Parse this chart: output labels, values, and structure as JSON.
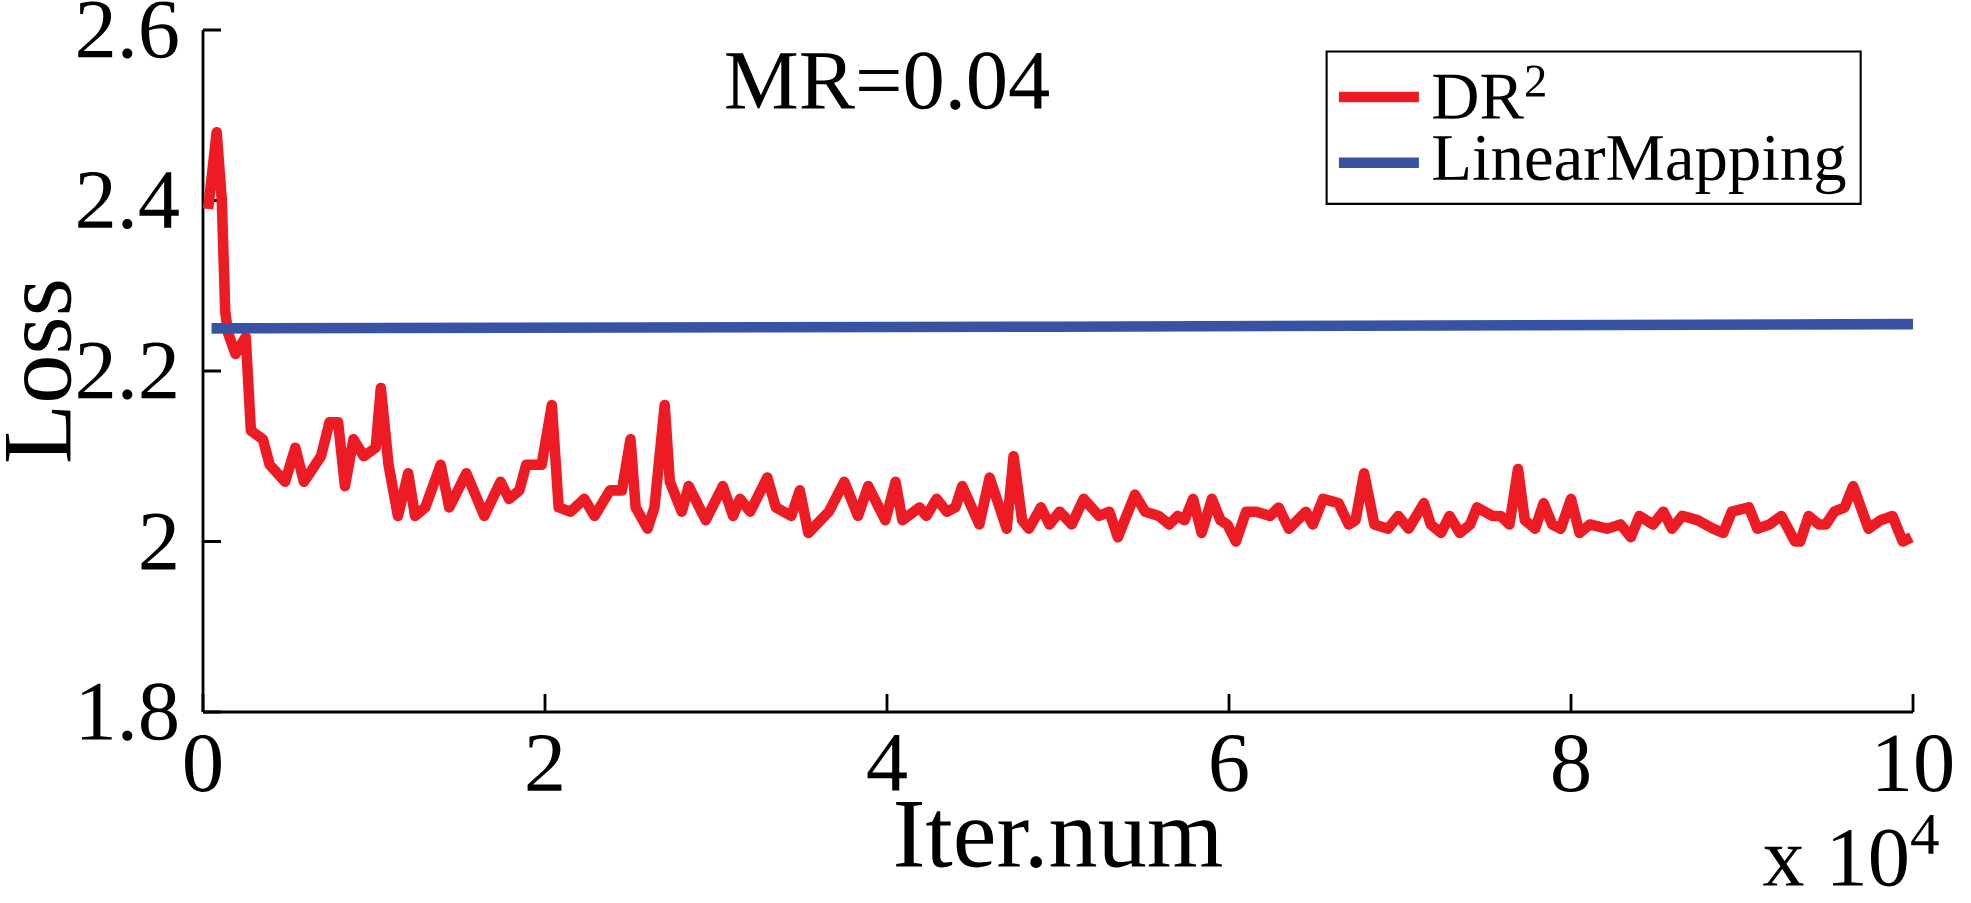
{
  "chart_data": {
    "type": "line",
    "title": "MR=0.04",
    "xlabel": "Iter.num",
    "ylabel": "Loss",
    "annotations": [
      "x 10$^{4}$"
    ],
    "xlim": [
      0,
      10
    ],
    "xticks": [
      0,
      2,
      4,
      6,
      8,
      10
    ],
    "ylim": [
      1.8,
      2.6
    ],
    "yticks": [
      1.8,
      2,
      2.2,
      2.4,
      2.6
    ],
    "grid": false,
    "legend": "top right",
    "marker": "none",
    "line_style": "solid",
    "series": [
      {
        "name": "DR$^{2}$",
        "color": "#ed1c24",
        "x": [
          0.03,
          0.08,
          0.11,
          0.13,
          0.146,
          0.19,
          0.25,
          0.28,
          0.35,
          0.39,
          0.48,
          0.54,
          0.59,
          0.69,
          0.74,
          0.79,
          0.83,
          0.88,
          0.94,
          1.01,
          1.04,
          1.085,
          1.14,
          1.2,
          1.24,
          1.3,
          1.39,
          1.44,
          1.54,
          1.645,
          1.74,
          1.79,
          1.85,
          1.89,
          1.98,
          2.04,
          2.08,
          2.15,
          2.23,
          2.29,
          2.38,
          2.45,
          2.5,
          2.53,
          2.6,
          2.64,
          2.7,
          2.73,
          2.8,
          2.84,
          2.94,
          3.04,
          3.1,
          3.14,
          3.2,
          3.3,
          3.35,
          3.44,
          3.49,
          3.54,
          3.66,
          3.75,
          3.83,
          3.89,
          3.99,
          4.05,
          4.09,
          4.19,
          4.23,
          4.29,
          4.35,
          4.4,
          4.44,
          4.54,
          4.6,
          4.7,
          4.74,
          4.79,
          4.83,
          4.9,
          4.95,
          5.01,
          5.08,
          5.15,
          5.24,
          5.3,
          5.35,
          5.45,
          5.51,
          5.59,
          5.65,
          5.7,
          5.74,
          5.79,
          5.84,
          5.9,
          5.95,
          5.99,
          6.04,
          6.1,
          6.16,
          6.24,
          6.29,
          6.35,
          6.45,
          6.49,
          6.55,
          6.64,
          6.7,
          6.74,
          6.79,
          6.85,
          6.93,
          6.99,
          7.05,
          7.14,
          7.18,
          7.24,
          7.29,
          7.35,
          7.41,
          7.45,
          7.54,
          7.59,
          7.64,
          7.69,
          7.73,
          7.79,
          7.84,
          7.89,
          7.94,
          8.0,
          8.05,
          8.11,
          8.21,
          8.29,
          8.35,
          8.4,
          8.48,
          8.54,
          8.59,
          8.65,
          8.74,
          8.83,
          8.89,
          8.94,
          9.04,
          9.09,
          9.16,
          9.23,
          9.31,
          9.34,
          9.39,
          9.45,
          9.49,
          9.54,
          9.6,
          9.65,
          9.74,
          9.81,
          9.88,
          9.94,
          9.99
        ],
        "values": [
          2.39,
          2.48,
          2.4,
          2.27,
          2.245,
          2.22,
          2.24,
          2.13,
          2.12,
          2.09,
          2.07,
          2.11,
          2.07,
          2.1,
          2.14,
          2.14,
          2.065,
          2.12,
          2.1,
          2.11,
          2.18,
          2.09,
          2.03,
          2.08,
          2.03,
          2.04,
          2.09,
          2.04,
          2.08,
          2.03,
          2.07,
          2.05,
          2.06,
          2.09,
          2.09,
          2.16,
          2.04,
          2.035,
          2.05,
          2.03,
          2.06,
          2.06,
          2.12,
          2.04,
          2.015,
          2.04,
          2.16,
          2.07,
          2.035,
          2.065,
          2.025,
          2.065,
          2.03,
          2.05,
          2.035,
          2.075,
          2.04,
          2.03,
          2.06,
          2.01,
          2.035,
          2.07,
          2.03,
          2.065,
          2.025,
          2.07,
          2.025,
          2.04,
          2.03,
          2.05,
          2.035,
          2.04,
          2.065,
          2.02,
          2.075,
          2.015,
          2.1,
          2.025,
          2.015,
          2.04,
          2.02,
          2.035,
          2.02,
          2.05,
          2.03,
          2.035,
          2.005,
          2.055,
          2.035,
          2.03,
          2.02,
          2.03,
          2.025,
          2.05,
          2.01,
          2.05,
          2.025,
          2.02,
          2.0,
          2.035,
          2.035,
          2.03,
          2.04,
          2.015,
          2.035,
          2.02,
          2.05,
          2.045,
          2.02,
          2.025,
          2.08,
          2.02,
          2.015,
          2.03,
          2.015,
          2.045,
          2.02,
          2.01,
          2.03,
          2.01,
          2.02,
          2.04,
          2.03,
          2.03,
          2.02,
          2.085,
          2.025,
          2.015,
          2.045,
          2.02,
          2.015,
          2.05,
          2.01,
          2.02,
          2.015,
          2.02,
          2.005,
          2.03,
          2.02,
          2.035,
          2.015,
          2.03,
          2.025,
          2.015,
          2.01,
          2.035,
          2.04,
          2.015,
          2.02,
          2.03,
          2.0,
          2.0,
          2.03,
          2.02,
          2.02,
          2.035,
          2.04,
          2.065,
          2.015,
          2.025,
          2.03,
          2.0,
          2.005
        ]
      },
      {
        "name": "LinearMapping",
        "color": "#3953a4",
        "x": [
          0.05,
          5.0,
          10
        ],
        "values": [
          2.25,
          2.252,
          2.255
        ]
      }
    ]
  }
}
